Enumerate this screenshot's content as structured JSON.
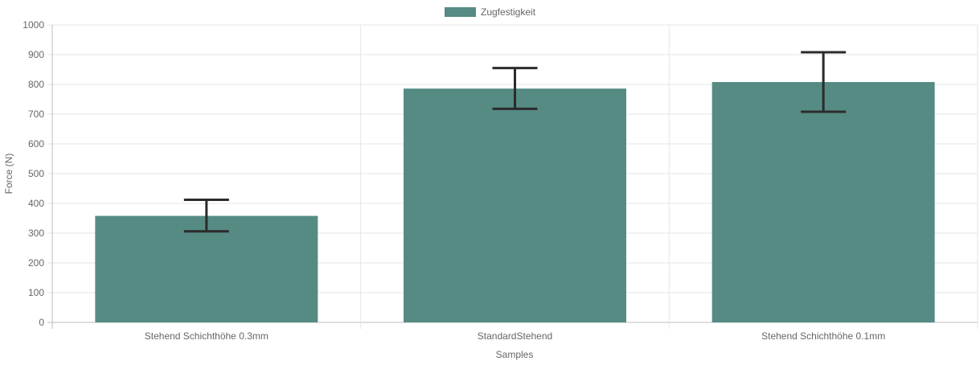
{
  "chart_data": {
    "type": "bar",
    "categories": [
      "Stehend Schichthöhe 0.3mm",
      "StandardStehend",
      "Stehend Schichthöhe 0.1mm"
    ],
    "series": [
      {
        "name": "Zugfestigkeit",
        "values": [
          358,
          786,
          808
        ],
        "error_low": [
          306,
          718,
          708
        ],
        "error_high": [
          412,
          855,
          908
        ],
        "color": "#558b83"
      }
    ],
    "xlabel": "Samples",
    "ylabel": "Force (N)",
    "ylim": [
      0,
      1000
    ],
    "yticks": [
      0,
      100,
      200,
      300,
      400,
      500,
      600,
      700,
      800,
      900,
      1000
    ],
    "grid": true,
    "legend": "top-center",
    "error_bar_color": "#2b2b2b"
  }
}
